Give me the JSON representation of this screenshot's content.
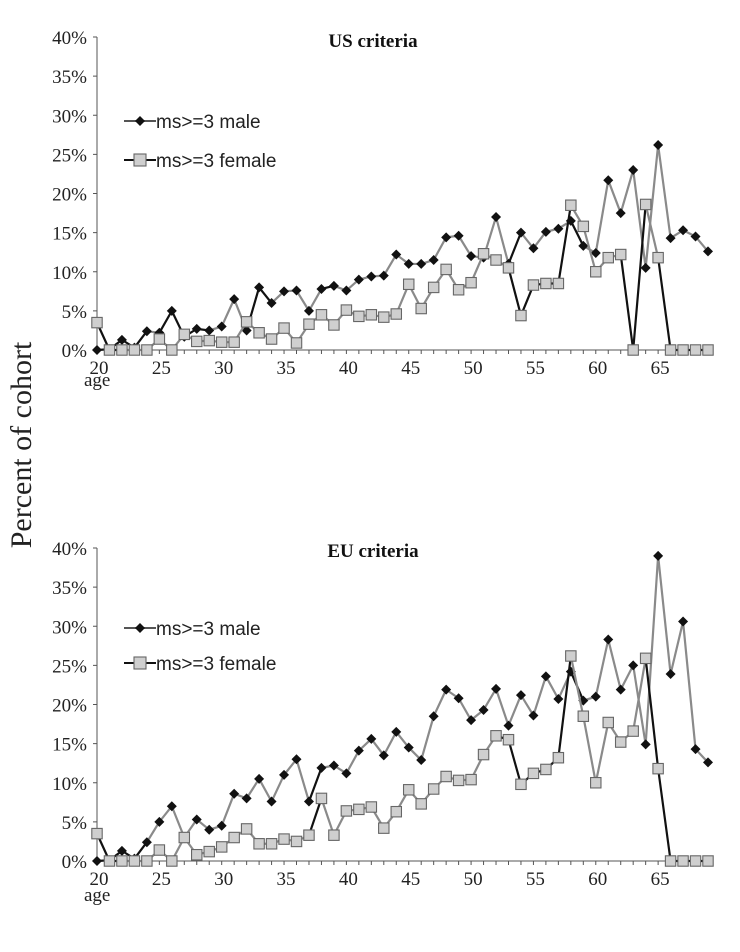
{
  "figure": {
    "ylabel": "Percent of cohort"
  },
  "chart_data": [
    {
      "type": "line",
      "title": "US criteria",
      "xlabel": "age",
      "ylabel": "Percent of cohort",
      "xlim": [
        20,
        69
      ],
      "ylim": [
        0,
        40
      ],
      "x_ticks": [
        "20",
        "25",
        "30",
        "35",
        "40",
        "45",
        "50",
        "55",
        "60",
        "65"
      ],
      "y_ticks": [
        "0%",
        "5%",
        "10%",
        "15%",
        "20%",
        "25%",
        "30%",
        "35%",
        "40%"
      ],
      "legend": "top-left",
      "x": [
        20,
        21,
        22,
        23,
        24,
        25,
        26,
        27,
        28,
        29,
        30,
        31,
        32,
        33,
        34,
        35,
        36,
        37,
        38,
        39,
        40,
        41,
        42,
        43,
        44,
        45,
        46,
        47,
        48,
        49,
        50,
        51,
        52,
        53,
        54,
        55,
        56,
        57,
        58,
        59,
        60,
        61,
        62,
        63,
        64,
        65,
        66,
        67,
        68,
        69
      ],
      "series": [
        {
          "name": "ms>=3 male",
          "marker": "diamond",
          "values": [
            0,
            0.1,
            1.3,
            0.3,
            2.4,
            2.2,
            5,
            1.7,
            2.7,
            2.5,
            3,
            6.5,
            2.5,
            8,
            6,
            7.5,
            7.6,
            5,
            7.8,
            8.2,
            7.6,
            9,
            9.4,
            9.5,
            12.2,
            11,
            11,
            11.5,
            14.4,
            14.6,
            12,
            11.8,
            17,
            11,
            15,
            13,
            15.1,
            15.5,
            16.5,
            13.3,
            12.4,
            21.7,
            17.5,
            23,
            10.5,
            26.2,
            14.3,
            15.3,
            14.5,
            12.6
          ]
        },
        {
          "name": "ms>=3 female",
          "marker": "square",
          "values": [
            3.5,
            0,
            0,
            0,
            0,
            1.4,
            0,
            2,
            1.1,
            1.2,
            1,
            1,
            3.6,
            2.2,
            1.4,
            2.8,
            0.9,
            3.3,
            4.5,
            3.2,
            5.1,
            4.3,
            4.5,
            4.2,
            4.6,
            8.4,
            5.3,
            8,
            10.3,
            7.7,
            8.6,
            12.3,
            11.5,
            10.5,
            4.4,
            8.3,
            8.5,
            8.5,
            18.5,
            15.8,
            10,
            11.8,
            12.2,
            0,
            18.6,
            11.8,
            0,
            0,
            0,
            0
          ]
        }
      ]
    },
    {
      "type": "line",
      "title": "EU criteria",
      "xlabel": "age",
      "ylabel": "Percent of cohort",
      "xlim": [
        20,
        69
      ],
      "ylim": [
        0,
        40
      ],
      "x_ticks": [
        "20",
        "25",
        "30",
        "35",
        "40",
        "45",
        "50",
        "55",
        "60",
        "65"
      ],
      "y_ticks": [
        "0%",
        "5%",
        "10%",
        "15%",
        "20%",
        "25%",
        "30%",
        "35%",
        "40%"
      ],
      "legend": "top-left",
      "x": [
        20,
        21,
        22,
        23,
        24,
        25,
        26,
        27,
        28,
        29,
        30,
        31,
        32,
        33,
        34,
        35,
        36,
        37,
        38,
        39,
        40,
        41,
        42,
        43,
        44,
        45,
        46,
        47,
        48,
        49,
        50,
        51,
        52,
        53,
        54,
        55,
        56,
        57,
        58,
        59,
        60,
        61,
        62,
        63,
        64,
        65,
        66,
        67,
        68,
        69
      ],
      "series": [
        {
          "name": "ms>=3 male",
          "marker": "diamond",
          "values": [
            0,
            0.1,
            1.3,
            0.3,
            2.4,
            5,
            7,
            3,
            5.3,
            4,
            4.5,
            8.6,
            8,
            10.5,
            7.6,
            11,
            13,
            7.6,
            11.9,
            12.2,
            11.2,
            14.1,
            15.6,
            13.5,
            16.5,
            14.5,
            12.9,
            18.5,
            21.9,
            20.8,
            18,
            19.3,
            22,
            17.3,
            21.2,
            18.6,
            23.6,
            20.7,
            24.2,
            20.5,
            21,
            28.3,
            21.9,
            25,
            14.9,
            39,
            23.9,
            30.6,
            14.3,
            12.6
          ]
        },
        {
          "name": "ms>=3 female",
          "marker": "square",
          "values": [
            3.5,
            0,
            0,
            0,
            0,
            1.4,
            0,
            3,
            0.8,
            1.2,
            1.8,
            3,
            4.1,
            2.2,
            2.2,
            2.8,
            2.5,
            3.3,
            8,
            3.3,
            6.4,
            6.6,
            6.9,
            4.2,
            6.3,
            9.1,
            7.3,
            9.2,
            10.8,
            10.3,
            10.4,
            13.6,
            16,
            15.5,
            9.8,
            11.2,
            11.7,
            13.2,
            26.2,
            18.5,
            10,
            17.7,
            15.2,
            16.6,
            25.9,
            11.8,
            0,
            0,
            0,
            0
          ]
        }
      ]
    }
  ]
}
